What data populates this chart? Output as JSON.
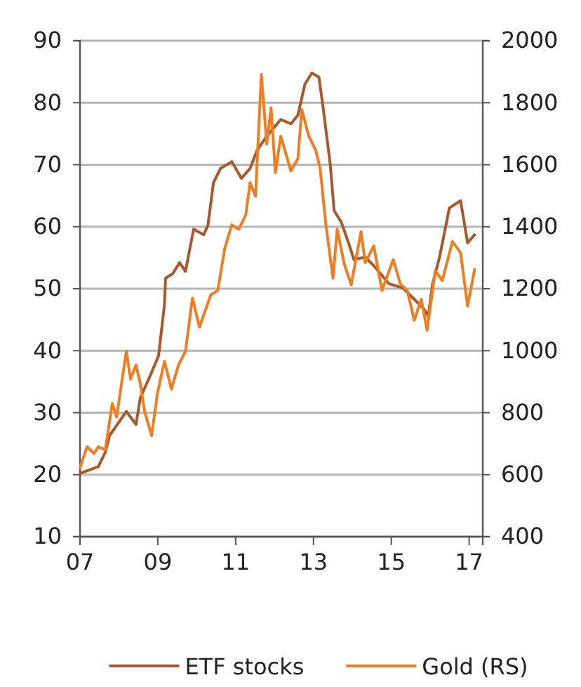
{
  "chart_data": {
    "type": "line",
    "xlim": [
      2007,
      2017.35
    ],
    "xticks": [
      {
        "value": 2007,
        "label": "07"
      },
      {
        "value": 2009,
        "label": "09"
      },
      {
        "value": 2011,
        "label": "11"
      },
      {
        "value": 2013,
        "label": "13"
      },
      {
        "value": 2015,
        "label": "15"
      },
      {
        "value": 2017,
        "label": "17"
      }
    ],
    "ylim": [
      10,
      90
    ],
    "yticks": [
      10,
      20,
      30,
      40,
      50,
      60,
      70,
      80,
      90
    ],
    "y2lim": [
      400,
      2000
    ],
    "y2ticks": [
      400,
      600,
      800,
      1000,
      1200,
      1400,
      1600,
      1800,
      2000
    ],
    "grid": "y",
    "legend": "bottom",
    "marker": "none",
    "line_style": "solid",
    "series": [
      {
        "name": "ETF stocks",
        "color": "#a8582a",
        "x": [
          2007.0,
          2007.47,
          2007.65,
          2007.76,
          2008.19,
          2008.44,
          2008.55,
          2008.84,
          2009.02,
          2009.17,
          2009.2,
          2009.38,
          2009.56,
          2009.71,
          2009.92,
          2010.18,
          2010.29,
          2010.43,
          2010.61,
          2010.9,
          2011.15,
          2011.37,
          2011.55,
          2011.8,
          2012.16,
          2012.42,
          2012.6,
          2012.78,
          2012.96,
          2013.14,
          2013.25,
          2013.43,
          2013.53,
          2013.71,
          2013.9,
          2014.04,
          2014.33,
          2014.58,
          2014.94,
          2015.3,
          2015.59,
          2015.84,
          2015.95,
          2016.06,
          2016.24,
          2016.49,
          2016.78,
          2016.96,
          2017.14
        ],
        "values": [
          20.2,
          21.3,
          23.6,
          26.3,
          30.2,
          28.1,
          32.4,
          36.5,
          39.2,
          47.4,
          51.7,
          52.4,
          54.2,
          52.8,
          59.6,
          58.7,
          60.3,
          67.1,
          69.4,
          70.5,
          67.8,
          69.4,
          72.3,
          74.6,
          77.3,
          76.6,
          78,
          83,
          84.8,
          84.1,
          79.1,
          70.1,
          62.6,
          60.8,
          57.4,
          54.7,
          55.1,
          53.5,
          50.8,
          50.1,
          48.3,
          46.7,
          45.6,
          50.8,
          55.1,
          63,
          64.2,
          57.4,
          58.7
        ]
      },
      {
        "name": "Gold (RS)",
        "color": "#f07d22",
        "axis": "y2",
        "x": [
          2007.0,
          2007.18,
          2007.36,
          2007.47,
          2007.65,
          2007.83,
          2007.94,
          2008.19,
          2008.3,
          2008.44,
          2008.55,
          2008.66,
          2008.84,
          2008.99,
          2009.17,
          2009.35,
          2009.53,
          2009.71,
          2009.89,
          2010.07,
          2010.36,
          2010.54,
          2010.72,
          2010.9,
          2011.08,
          2011.26,
          2011.37,
          2011.51,
          2011.66,
          2011.8,
          2011.91,
          2012.02,
          2012.16,
          2012.42,
          2012.6,
          2012.7,
          2012.88,
          2013.06,
          2013.17,
          2013.32,
          2013.5,
          2013.61,
          2013.79,
          2013.97,
          2014.22,
          2014.33,
          2014.55,
          2014.76,
          2015.05,
          2015.23,
          2015.41,
          2015.59,
          2015.77,
          2015.92,
          2016.13,
          2016.31,
          2016.57,
          2016.78,
          2016.96,
          2017.14
        ],
        "values": [
          622,
          690,
          668,
          690,
          680,
          830,
          786,
          998,
          908,
          954,
          894,
          804,
          726,
          862,
          966,
          876,
          954,
          998,
          1170,
          1076,
          1180,
          1194,
          1330,
          1406,
          1392,
          1438,
          1542,
          1498,
          1892,
          1666,
          1784,
          1574,
          1692,
          1580,
          1620,
          1778,
          1692,
          1646,
          1588,
          1406,
          1234,
          1392,
          1280,
          1212,
          1384,
          1284,
          1338,
          1194,
          1294,
          1216,
          1194,
          1098,
          1166,
          1066,
          1258,
          1226,
          1352,
          1316,
          1144,
          1262
        ]
      }
    ]
  }
}
